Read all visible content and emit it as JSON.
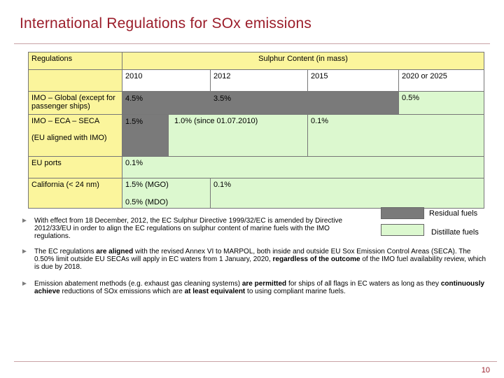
{
  "title": "International Regulations for SOx emissions",
  "table": {
    "header_regulations": "Regulations",
    "header_sulphur": "Sulphur Content (in mass)",
    "years": [
      "2010",
      "2012",
      "2015",
      "2020 or 2025"
    ],
    "rows": {
      "imo_global": {
        "label": "IMO – Global (except for passenger ships)",
        "v2010": "4.5%",
        "v2012": "3.5%",
        "v2020": "0.5%"
      },
      "imo_eca": {
        "label": "IMO – ECA – SECA",
        "sublabel": "(EU aligned with IMO)",
        "v2010": "1.5%",
        "v2010b": "1.0% (since 01.07.2010)",
        "v2015": "0.1%"
      },
      "eu_ports": {
        "label": "EU ports",
        "v2010": "0.1%"
      },
      "california": {
        "label": "California (< 24 nm)",
        "v_mgo": "1.5% (MGO)",
        "v_mdo": "0.5% (MDO)",
        "v2012": "0.1%"
      }
    }
  },
  "legend": {
    "residual": "Residual fuels",
    "distillate": "Distillate fuels",
    "residual_color": "#7a7a7a",
    "distillate_color": "#dcf8cf"
  },
  "bullets": [
    {
      "parts": [
        "With effect from 18 December, 2012, the EC Sulphur Directive 1999/32/EC is amended by Directive 2012/33/EU in order to align the EC regulations on sulphur content of marine fuels with the IMO regulations."
      ]
    },
    {
      "p1": "The EC regulations ",
      "b1": "are aligned",
      "p2": " with the revised Annex VI to MARPOL, both inside and outside EU Sox Emission Control Areas (SECA). The 0.50% limit outside EU SECAs will apply in EC waters from 1 January, 2020, ",
      "b2": "regardless of the outcome",
      "p3": " of the IMO fuel availability review, which is due by 2018."
    },
    {
      "p1": "Emission abatement methods (e.g. exhaust gas cleaning systems) ",
      "b1": "are permitted",
      "p2": " for ships of all flags in EC waters as long as they ",
      "b2": "continuously achieve",
      "p3": " reductions of SOx emissions which are ",
      "b3": "at least equivalent",
      "p4": " to using compliant marine fuels."
    }
  ],
  "page_number": "10",
  "colors": {
    "title": "#9b1d2a",
    "header_fill": "#fbf59c"
  }
}
